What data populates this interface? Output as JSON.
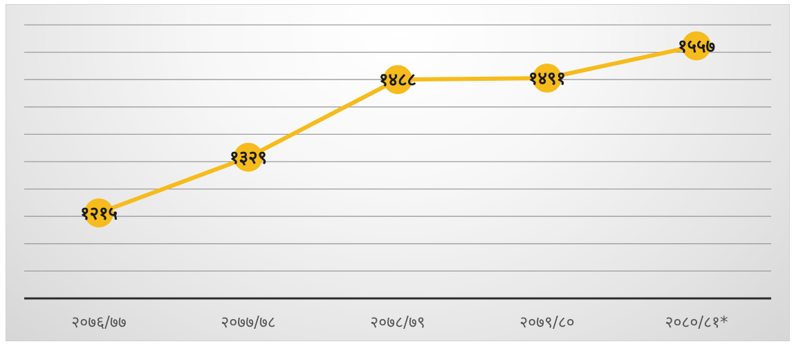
{
  "chart_data": {
    "type": "line",
    "title": "",
    "xlabel": "",
    "ylabel": "",
    "categories": [
      "२०७६/७७",
      "२०७७/७८",
      "२०७८/७९",
      "२०७९/८०",
      "२०८०/८१*"
    ],
    "series": [
      {
        "values": [
          1215,
          1329,
          1488,
          1491,
          1557
        ],
        "labels": [
          "१२१५",
          "१३२९",
          "१४८८",
          "१४९१",
          "१५५७"
        ]
      }
    ],
    "ylim": [
      1040,
      1600
    ],
    "grid": true,
    "legend": "none",
    "colors": {
      "series": "#f6bb1c",
      "axis": "#2b2b2b",
      "grid": "#9c9c9c"
    }
  }
}
